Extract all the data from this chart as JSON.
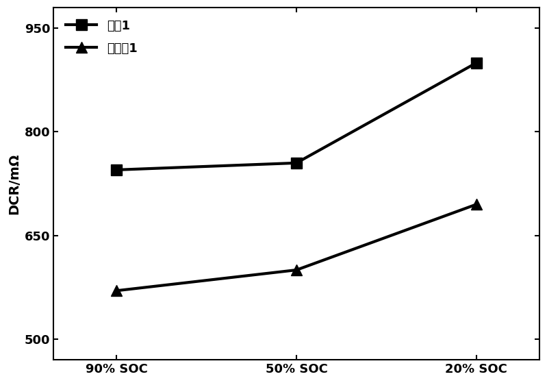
{
  "x_labels": [
    "90% SOC",
    "50% SOC",
    "20% SOC"
  ],
  "x_positions": [
    0,
    1,
    2
  ],
  "series1": {
    "label": "对比1",
    "values": [
      745,
      755,
      900
    ],
    "color": "#000000",
    "marker": "s",
    "markersize": 11,
    "linewidth": 3.0
  },
  "series2": {
    "label": "实施兡1",
    "values": [
      570,
      600,
      695
    ],
    "color": "#000000",
    "marker": "^",
    "markersize": 11,
    "linewidth": 3.0
  },
  "ylabel": "DCR/mΩ",
  "ylim": [
    470,
    980
  ],
  "yticks": [
    500,
    650,
    800,
    950
  ],
  "background_color": "#ffffff",
  "legend_loc": "upper left",
  "axis_fontsize": 14,
  "tick_fontsize": 13,
  "legend_fontsize": 13
}
